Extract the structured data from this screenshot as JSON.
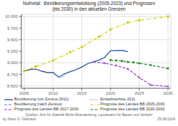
{
  "chart_data": {
    "type": "line",
    "title": "Nuthetal:  Bevölkerungsentwicklung (2005-2023) und Prognosen\n(bis 2030) in den aktuellen Grenzen",
    "annotations": [
      "Quellen: Amt für Statistik Berlin-Brandenburg, Landesamt für Bauen und Verkehr",
      "by Hans G. Oberlack",
      "25.08.2024"
    ],
    "xlim": [
      2004.5,
      2030.5
    ],
    "ylim": [
      8450,
      10050
    ],
    "xticks": [
      2005,
      2010,
      2015,
      2020,
      2025,
      2030
    ],
    "yticks": [
      {
        "value": 8500,
        "label": "8.500"
      },
      {
        "value": 8750,
        "label": "8.750"
      },
      {
        "value": 9000,
        "label": "9.000"
      },
      {
        "value": 9250,
        "label": "9.250"
      },
      {
        "value": 9500,
        "label": "9.500"
      },
      {
        "value": 9750,
        "label": "9.750"
      },
      {
        "value": 10000,
        "label": "10.000"
      }
    ],
    "grid": true,
    "legend": "bottom",
    "series": [
      {
        "name": "Bevölkerung (vor Zensus 2011)",
        "color": "#1a3a7a",
        "line_style": "solid",
        "x": [
          2005,
          2006,
          2007,
          2008,
          2009,
          2010,
          2011,
          2012,
          2013,
          2014,
          2015,
          2016,
          2017,
          2018,
          2019,
          2020,
          2021,
          2022,
          2023
        ],
        "values": [
          8820,
          8855,
          8865,
          8820,
          8790,
          8790,
          8690,
          8760,
          8810,
          8850,
          8910,
          8980,
          9020,
          9060,
          9120,
          9260,
          9265,
          9270,
          9240
        ]
      },
      {
        "name": "Einwohnerliste 2011",
        "color": "#4466bb",
        "line_style": "dotted",
        "x": [
          2010,
          2011,
          2012
        ],
        "values": [
          8790,
          8690,
          8710
        ]
      },
      {
        "name": "Bevölkerung (nach Zensus)",
        "color": "#4488cc",
        "line_style": "dashed",
        "x": [
          2011,
          2012,
          2013,
          2014,
          2015,
          2016,
          2017,
          2018,
          2019,
          2020,
          2021,
          2022,
          2023
        ],
        "values": [
          8690,
          8760,
          8810,
          8850,
          8910,
          8980,
          9020,
          9060,
          9120,
          9260,
          9265,
          9270,
          9240
        ]
      },
      {
        "name": "Prognose des Landes BB 2005-2030",
        "color": "#cccc00",
        "line_style": "dashdot",
        "marker": "circle",
        "x": [
          2005,
          2007,
          2010,
          2013,
          2015,
          2018,
          2020,
          2023,
          2025,
          2030
        ],
        "values": [
          8820,
          8920,
          9050,
          9230,
          9340,
          9560,
          9720,
          9870,
          9920,
          10000
        ]
      },
      {
        "name": "Prognose des Landes BB 2017-2030",
        "color": "#9933cc",
        "line_style": "dashed",
        "marker": "diamond",
        "x": [
          2017,
          2019,
          2021,
          2023,
          2025,
          2027,
          2030
        ],
        "values": [
          9020,
          8990,
          8940,
          8870,
          8680,
          8520,
          8490
        ]
      },
      {
        "name": "Prognose des Landes BB 2020-2030",
        "color": "#228822",
        "line_style": "dashed",
        "marker": "square",
        "x": [
          2020,
          2021,
          2022,
          2023,
          2024,
          2025,
          2027,
          2030
        ],
        "values": [
          9060,
          9050,
          9040,
          9020,
          9010,
          8990,
          8950,
          8880
        ]
      }
    ]
  }
}
